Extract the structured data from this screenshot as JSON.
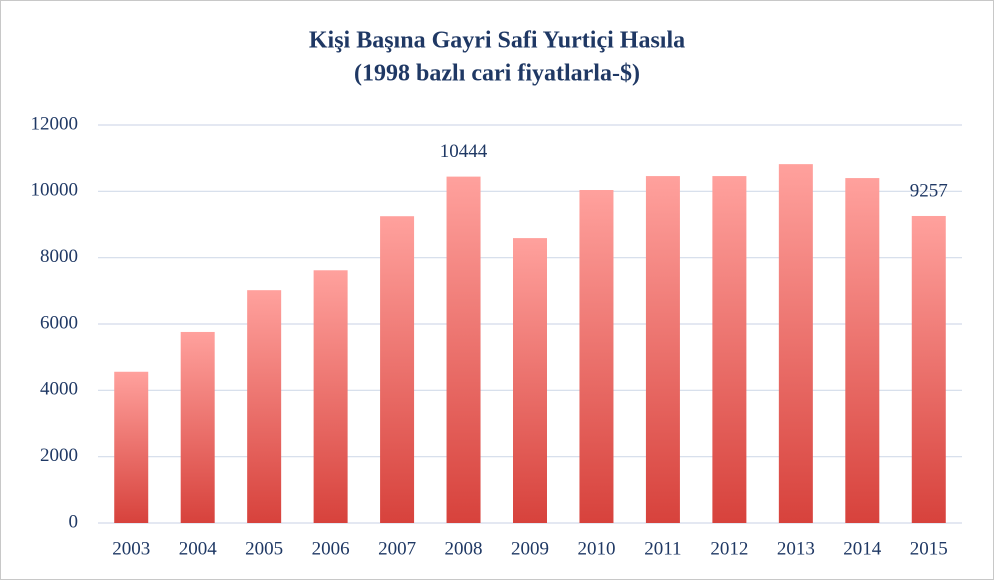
{
  "chart_data": {
    "type": "bar",
    "title": "Kişi Başına Gayri Safi Yurtiçi Hasıla",
    "subtitle": "(1998 bazlı cari fiyatlarla-$)",
    "categories": [
      "2003",
      "2004",
      "2005",
      "2006",
      "2007",
      "2008",
      "2009",
      "2010",
      "2011",
      "2012",
      "2013",
      "2014",
      "2015"
    ],
    "values": [
      4560,
      5760,
      7020,
      7620,
      9250,
      10444,
      8590,
      10040,
      10460,
      10460,
      10820,
      10400,
      9257
    ],
    "value_labels": [
      null,
      null,
      null,
      null,
      null,
      "10444",
      null,
      null,
      null,
      null,
      null,
      null,
      "9257"
    ],
    "color": [
      "#ffa19d",
      "#d7423c"
    ],
    "ylim": [
      0,
      12000
    ],
    "yticks": [
      0,
      2000,
      4000,
      6000,
      8000,
      10000,
      12000
    ],
    "grid": true
  }
}
